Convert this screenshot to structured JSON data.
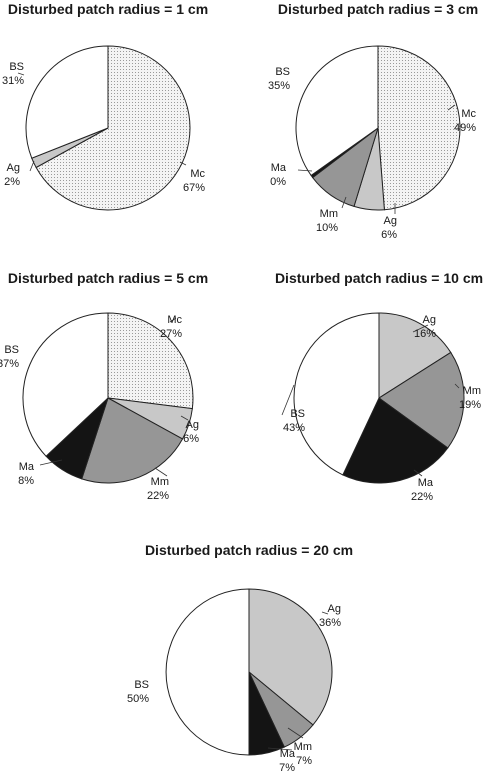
{
  "colors": {
    "Mc": "#f3f3f3",
    "Ag": "#c8c8c8",
    "Mm": "#969696",
    "Ma": "#141414",
    "BS": "#ffffff"
  },
  "chart_data": [
    {
      "type": "pie",
      "title": "Disturbed patch radius = 1 cm",
      "slices": [
        {
          "name": "Mc",
          "value": 67,
          "label": "67%"
        },
        {
          "name": "Ag",
          "value": 2,
          "label": "2%"
        },
        {
          "name": "BS",
          "value": 31,
          "label": "31%"
        }
      ]
    },
    {
      "type": "pie",
      "title": "Disturbed patch radius = 3 cm",
      "slices": [
        {
          "name": "Mc",
          "value": 49,
          "label": "49%"
        },
        {
          "name": "Ag",
          "value": 6,
          "label": "6%"
        },
        {
          "name": "Mm",
          "value": 10,
          "label": "10%"
        },
        {
          "name": "Ma",
          "value": 0.5,
          "label": "0%"
        },
        {
          "name": "BS",
          "value": 35,
          "label": "35%"
        }
      ]
    },
    {
      "type": "pie",
      "title": "Disturbed patch radius = 5 cm",
      "slices": [
        {
          "name": "Mc",
          "value": 27,
          "label": "27%"
        },
        {
          "name": "Ag",
          "value": 6,
          "label": "6%"
        },
        {
          "name": "Mm",
          "value": 22,
          "label": "22%"
        },
        {
          "name": "Ma",
          "value": 8,
          "label": "8%"
        },
        {
          "name": "BS",
          "value": 37,
          "label": "37%"
        }
      ]
    },
    {
      "type": "pie",
      "title": "Disturbed patch radius = 10 cm",
      "slices": [
        {
          "name": "Ag",
          "value": 16,
          "label": "16%"
        },
        {
          "name": "Mm",
          "value": 19,
          "label": "19%"
        },
        {
          "name": "Ma",
          "value": 22,
          "label": "22%"
        },
        {
          "name": "BS",
          "value": 43,
          "label": "43%"
        }
      ]
    },
    {
      "type": "pie",
      "title": "Disturbed patch radius = 20 cm",
      "slices": [
        {
          "name": "Ag",
          "value": 36,
          "label": "36%"
        },
        {
          "name": "Mm",
          "value": 7,
          "label": "7%"
        },
        {
          "name": "Ma",
          "value": 7,
          "label": "7%"
        },
        {
          "name": "BS",
          "value": 50,
          "label": "50%"
        }
      ]
    }
  ]
}
